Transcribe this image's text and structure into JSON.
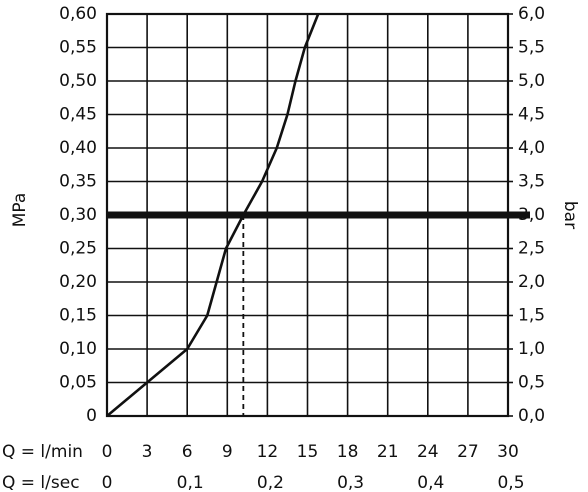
{
  "chart_data": {
    "type": "line",
    "xlabel": "Q = l/min",
    "x2label": "Q = l/sec",
    "ylabel": "MPa",
    "y2label": "bar",
    "x": [
      0,
      3,
      6,
      7.5,
      8.9,
      10.2,
      11.6,
      12.7,
      13.5,
      14.1,
      14.8,
      15.8
    ],
    "series": [
      {
        "color": "#111111",
        "values": [
          0,
          0.05,
          0.1,
          0.15,
          0.25,
          0.3,
          0.35,
          0.4,
          0.45,
          0.5,
          0.55,
          0.6
        ]
      }
    ],
    "xlim": [
      0,
      30
    ],
    "xticks": [
      0,
      3,
      6,
      9,
      12,
      15,
      18,
      21,
      24,
      27,
      30
    ],
    "x2lim": [
      0,
      0.5
    ],
    "x2ticks": [
      0,
      {
        "value": 0.1,
        "label": "0,1"
      },
      {
        "value": 0.2,
        "label": "0,2"
      },
      {
        "value": 0.3,
        "label": "0,3"
      },
      {
        "value": 0.4,
        "label": "0,4"
      },
      {
        "value": 0.5,
        "label": "0,5"
      }
    ],
    "ylim": [
      0,
      0.6
    ],
    "yticks": [
      0,
      {
        "value": 0.05,
        "label": "0,05"
      },
      {
        "value": 0.1,
        "label": "0,10"
      },
      {
        "value": 0.15,
        "label": "0,15"
      },
      {
        "value": 0.2,
        "label": "0,20"
      },
      {
        "value": 0.25,
        "label": "0,25"
      },
      {
        "value": 0.3,
        "label": "0,30"
      },
      {
        "value": 0.35,
        "label": "0,35"
      },
      {
        "value": 0.4,
        "label": "0,40"
      },
      {
        "value": 0.45,
        "label": "0,45"
      },
      {
        "value": 0.5,
        "label": "0,50"
      },
      {
        "value": 0.55,
        "label": "0,55"
      },
      {
        "value": 0.6,
        "label": "0,60"
      }
    ],
    "y2lim": [
      0,
      6
    ],
    "y2ticks": [
      {
        "value": 0,
        "label": "0,0"
      },
      {
        "value": 0.5,
        "label": "0,5"
      },
      {
        "value": 1,
        "label": "1,0"
      },
      {
        "value": 1.5,
        "label": "1,5"
      },
      {
        "value": 2,
        "label": "2,0"
      },
      {
        "value": 2.5,
        "label": "2,5"
      },
      {
        "value": 3,
        "label": "3,0"
      },
      {
        "value": 3.5,
        "label": "3,5"
      },
      {
        "value": 4,
        "label": "4,0"
      },
      {
        "value": 4.5,
        "label": "4,5"
      },
      {
        "value": 5,
        "label": "5,0"
      },
      {
        "value": 5.5,
        "label": "5,5"
      },
      {
        "value": 6,
        "label": "6,0"
      }
    ],
    "reference_y": 0.3,
    "reference_x": 10.2,
    "grid": true
  }
}
